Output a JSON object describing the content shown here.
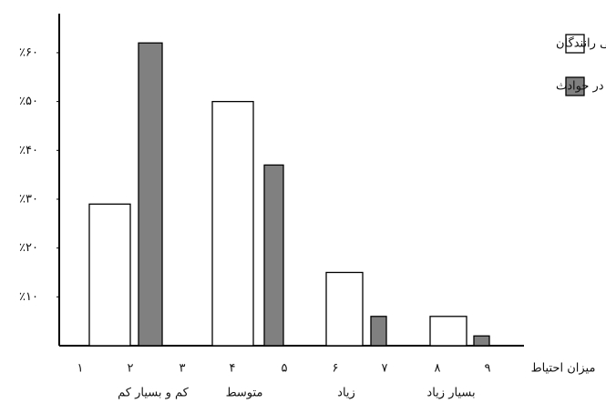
{
  "chart_data": {
    "type": "bar",
    "categories": [
      "کم و بسیار کم",
      "متوسط",
      "زیاد",
      "بسیار زیاد"
    ],
    "scale_labels": [
      "۱",
      "۲",
      "۳",
      "۴",
      "۵",
      "۶",
      "۷",
      "۸",
      "۹"
    ],
    "x_label": "میزان احتیاط",
    "series": [
      {
        "name": "درصد فراوانی رانندگان",
        "color": "#ffffff",
        "values": [
          29,
          50,
          15,
          6
        ]
      },
      {
        "name": "درصد مسئول شناخته شدن در حوادث",
        "color": "#808080",
        "values": [
          62,
          37,
          6,
          2
        ]
      }
    ],
    "ylim": [
      0,
      68
    ],
    "yticks": [
      {
        "value": 10,
        "label": "٪۱۰"
      },
      {
        "value": 20,
        "label": "٪۲۰"
      },
      {
        "value": 30,
        "label": "٪۳۰"
      },
      {
        "value": 40,
        "label": "٪۴۰"
      },
      {
        "value": 50,
        "label": "٪۵۰"
      },
      {
        "value": 60,
        "label": "٪۶۰"
      }
    ],
    "legend": "top-right"
  }
}
